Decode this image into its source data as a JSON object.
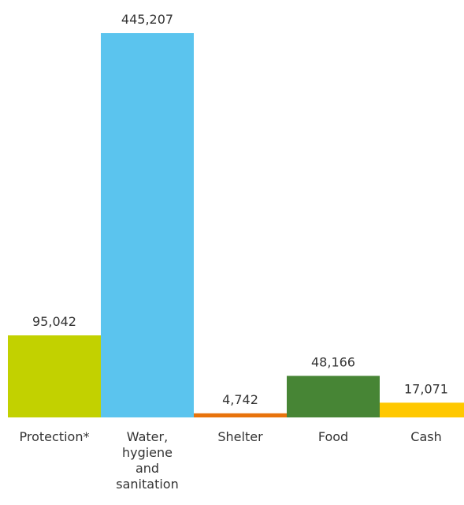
{
  "chart_data": {
    "type": "bar",
    "categories": [
      [
        "Protection*"
      ],
      [
        "Water,",
        "hygiene",
        "and",
        "sanitation"
      ],
      [
        "Shelter"
      ],
      [
        "Food"
      ],
      [
        "Cash"
      ]
    ],
    "values": [
      95042,
      445207,
      4742,
      48166,
      17071
    ],
    "value_labels": [
      "95,042",
      "445,207",
      "4,742",
      "48,166",
      "17,071"
    ],
    "colors": [
      "#c2d100",
      "#5bc4ee",
      "#e8730c",
      "#478535",
      "#ffc800"
    ],
    "ylim": [
      0,
      445207
    ],
    "grid": false,
    "legend": "none"
  }
}
